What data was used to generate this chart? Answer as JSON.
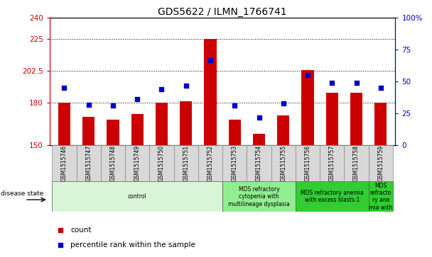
{
  "title": "GDS5622 / ILMN_1766741",
  "samples": [
    "GSM1515746",
    "GSM1515747",
    "GSM1515748",
    "GSM1515749",
    "GSM1515750",
    "GSM1515751",
    "GSM1515752",
    "GSM1515753",
    "GSM1515754",
    "GSM1515755",
    "GSM1515756",
    "GSM1515757",
    "GSM1515758",
    "GSM1515759"
  ],
  "counts": [
    180,
    170,
    168,
    172,
    180,
    181,
    225,
    168,
    158,
    171,
    203,
    187,
    187,
    180
  ],
  "percentiles": [
    45,
    32,
    31,
    36,
    44,
    47,
    67,
    31,
    22,
    33,
    55,
    49,
    49,
    45
  ],
  "ylim_left": [
    150,
    240
  ],
  "ylim_right": [
    0,
    100
  ],
  "yticks_left": [
    150,
    180,
    202.5,
    225,
    240
  ],
  "ytick_labels_left": [
    "150",
    "180",
    "202.5",
    "225",
    "240"
  ],
  "yticks_right": [
    0,
    25,
    50,
    75,
    100
  ],
  "ytick_labels_right": [
    "0",
    "25",
    "50",
    "75",
    "100%"
  ],
  "bar_color": "#cc0000",
  "dot_color": "#0000cc",
  "bg_color": "#ffffff",
  "disease_groups": [
    {
      "label": "control",
      "start": 0,
      "end": 7,
      "color": "#d8f5d8"
    },
    {
      "label": "MDS refractory\ncytopenia with\nmultilineage dysplasia",
      "start": 7,
      "end": 10,
      "color": "#90ee90"
    },
    {
      "label": "MDS refractory anemia\nwith excess blasts-1",
      "start": 10,
      "end": 13,
      "color": "#32cd32"
    },
    {
      "label": "MDS\nrefracto\nry ane\nmia with",
      "start": 13,
      "end": 14,
      "color": "#32cd32"
    }
  ],
  "legend_count_label": "count",
  "legend_pct_label": "percentile rank within the sample",
  "disease_state_label": "disease state"
}
